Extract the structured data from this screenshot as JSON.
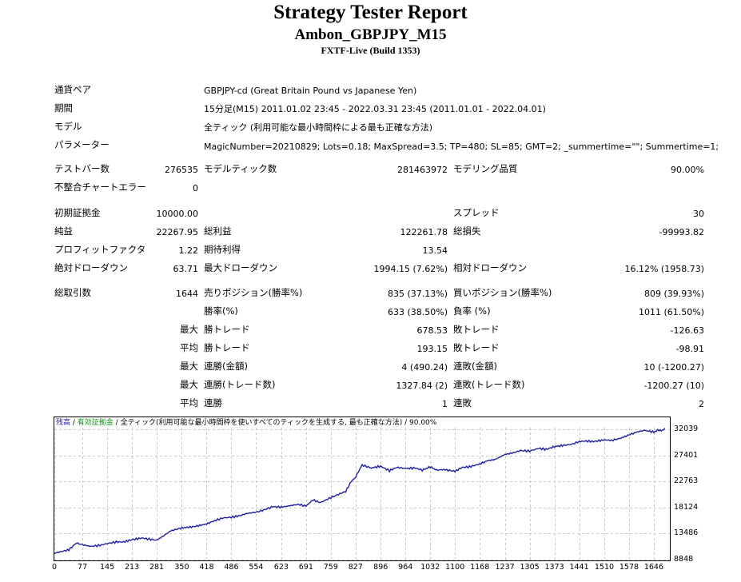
{
  "report": {
    "title": "Strategy Tester Report",
    "subtitle": "Ambon_GBPJPY_M15",
    "build": "FXTF-Live (Build 1353)"
  },
  "info": {
    "symbol_label": "通貨ペア",
    "symbol_value": "GBPJPY-cd (Great Britain Pound vs Japanese Yen)",
    "period_label": "期間",
    "period_value": "15分足(M15) 2011.01.02 23:45 - 2022.03.31 23:45 (2011.01.01 - 2022.04.01)",
    "model_label": "モデル",
    "model_value": "全ティック (利用可能な最小時間枠による最も正確な方法)",
    "params_label": "パラメーター",
    "params_value": "MagicNumber=20210829; Lots=0.18; MaxSpread=3.5; TP=480; SL=85; GMT=2; _summertime=\"\"; Summertime=1;"
  },
  "stats": {
    "bars_label": "テストバー数",
    "bars_value": "276535",
    "ticks_label": "モデルティック数",
    "ticks_value": "281463972",
    "quality_label": "モデリング品質",
    "quality_value": "90.00%",
    "mismatch_label": "不整合チャートエラー",
    "mismatch_value": "0",
    "deposit_label": "初期証拠金",
    "deposit_value": "10000.00",
    "spread_label": "スプレッド",
    "spread_value": "30",
    "net_label": "純益",
    "net_value": "22267.95",
    "gross_profit_label": "総利益",
    "gross_profit_value": "122261.78",
    "gross_loss_label": "総損失",
    "gross_loss_value": "-99993.82",
    "pf_label": "プロフィットファクタ",
    "pf_value": "1.22",
    "expected_label": "期待利得",
    "expected_value": "13.54",
    "abs_dd_label": "絶対ドローダウン",
    "abs_dd_value": "63.71",
    "max_dd_label": "最大ドローダウン",
    "max_dd_value": "1994.15 (7.62%)",
    "rel_dd_label": "相対ドローダウン",
    "rel_dd_value": "16.12% (1958.73)",
    "trades_label": "総取引数",
    "trades_value": "1644",
    "short_label": "売りポジション(勝率%)",
    "short_value": "835 (37.13%)",
    "long_label": "買いポジション(勝率%)",
    "long_value": "809 (39.93%)",
    "win_label": "勝率(%)",
    "win_value": "633 (38.50%)",
    "loss_label": "負率 (%)",
    "loss_value": "1011 (61.50%)",
    "largest_prefix": "最大",
    "largest_win_label": "勝トレード",
    "largest_win_value": "678.53",
    "largest_loss_label": "敗トレード",
    "largest_loss_value": "-126.63",
    "average_prefix": "平均",
    "avg_win_label": "勝トレード",
    "avg_win_value": "193.15",
    "avg_loss_label": "敗トレード",
    "avg_loss_value": "-98.91",
    "max_consec_prefix": "最大",
    "max_consec_win_label": "連勝(金額)",
    "max_consec_win_value": "4 (490.24)",
    "max_consec_loss_label": "連敗(金額)",
    "max_consec_loss_value": "10 (-1200.27)",
    "max_consec2_prefix": "最大",
    "max_consec_profit_label": "連勝(トレード数)",
    "max_consec_profit_value": "1327.84 (2)",
    "max_consec_lossamt_label": "連敗(トレード数)",
    "max_consec_lossamt_value": "-1200.27 (10)",
    "avg_consec_prefix": "平均",
    "avg_consec_win_label": "連勝",
    "avg_consec_win_value": "1",
    "avg_consec_loss_label": "連敗",
    "avg_consec_loss_value": "2"
  },
  "chart_header": {
    "balance": "残高",
    "sep1": " / ",
    "equity": "有効証拠金",
    "sep2": " / ",
    "model": "全ティック(利用可能な最小時間枠を使いすべてのティックを生成する, 最も正確な方法)",
    "sep3": " / ",
    "quality": "90.00%"
  },
  "colors": {
    "balance_line": "#1f1fa0",
    "equity_text": "#00a000",
    "grid": "#c8c8c8",
    "frame": "#000000"
  },
  "chart_data": {
    "type": "line",
    "title": "",
    "xlabel": "",
    "ylabel": "",
    "x_ticks": [
      0,
      77,
      145,
      213,
      281,
      350,
      418,
      486,
      554,
      623,
      691,
      759,
      827,
      896,
      964,
      1032,
      1100,
      1168,
      1237,
      1305,
      1373,
      1441,
      1510,
      1578,
      1646
    ],
    "y_ticks": [
      8848,
      13486,
      18124,
      22763,
      27401,
      32039
    ],
    "xlim": [
      0,
      1690
    ],
    "ylim": [
      8848,
      33800
    ],
    "grid": true,
    "series": [
      {
        "x": [
          0,
          20,
          40,
          60,
          77,
          100,
          125,
          145,
          170,
          190,
          213,
          240,
          260,
          281,
          300,
          320,
          350,
          380,
          418,
          440,
          465,
          486,
          510,
          530,
          554,
          575,
          600,
          623,
          650,
          670,
          691,
          710,
          730,
          759,
          780,
          800,
          815,
          827,
          835,
          845,
          870,
          896,
          920,
          940,
          964,
          990,
          1010,
          1032,
          1050,
          1070,
          1100,
          1120,
          1140,
          1168,
          1190,
          1210,
          1237,
          1260,
          1280,
          1305,
          1330,
          1350,
          1373,
          1395,
          1420,
          1441,
          1460,
          1480,
          1510,
          1530,
          1555,
          1578,
          1600,
          1620,
          1646,
          1660,
          1670,
          1676
        ],
        "values": [
          10000,
          10300,
          10600,
          11800,
          11500,
          11200,
          11400,
          11700,
          12000,
          12000,
          12400,
          12700,
          12500,
          12300,
          13100,
          14000,
          14500,
          14700,
          15200,
          15800,
          16300,
          16400,
          16700,
          17100,
          17300,
          17700,
          18300,
          18200,
          18500,
          18700,
          18400,
          19500,
          19000,
          19900,
          20500,
          21000,
          22800,
          23500,
          24600,
          25700,
          25200,
          25500,
          24700,
          25300,
          25100,
          25200,
          24800,
          25400,
          24800,
          24900,
          24600,
          25300,
          25400,
          25900,
          26500,
          26700,
          27600,
          27900,
          28300,
          28200,
          28700,
          28500,
          29000,
          29200,
          29400,
          29900,
          30000,
          29900,
          30200,
          30100,
          30500,
          31100,
          31600,
          31900,
          31600,
          32000,
          31800,
          32300
        ]
      }
    ]
  }
}
